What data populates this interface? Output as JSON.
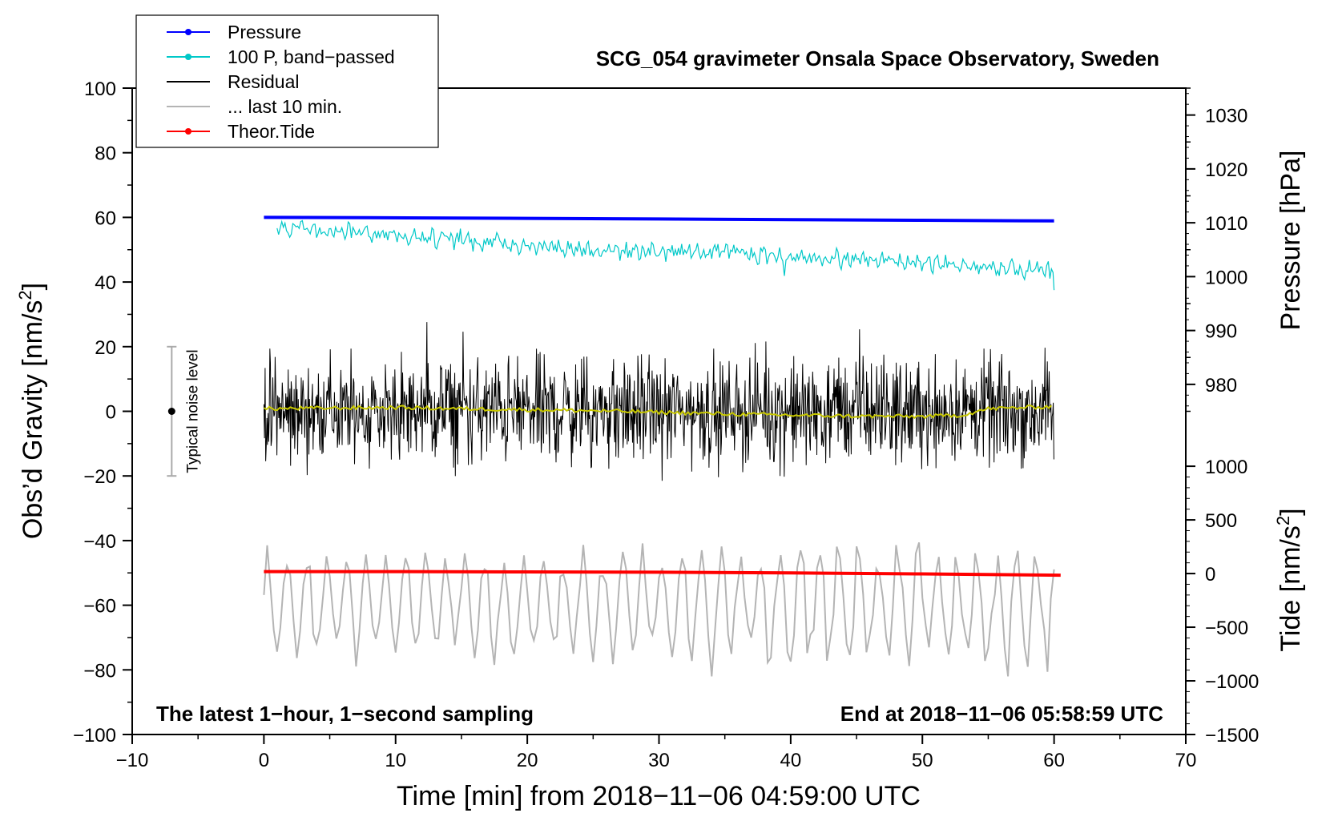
{
  "chart_data": {
    "type": "line",
    "title": "SCG_054 gravimeter Onsala Space Observatory, Sweden",
    "xlabel": "Time [min] from 2018−11−06 04:59:00 UTC",
    "ylabel_left": "Obs’d Gravity [nm/s²]",
    "ylabel_left_main": "Obs’d Gravity [nm/s",
    "ylabel_left_sup": "2",
    "ylabel_left_close": "]",
    "ylabel_right_top": "Pressure [hPa]",
    "ylabel_right_bottom": "Tide [nm/s²]",
    "ylabel_right_bottom_main": "Tide [nm/s",
    "ylabel_right_bottom_sup": "2",
    "ylabel_right_bottom_close": "]",
    "xlim": [
      -10,
      70
    ],
    "ylim": [
      -100,
      100
    ],
    "pressure_axis_range": [
      975,
      1035
    ],
    "tide_axis_range": [
      -1500,
      1000
    ],
    "x_ticks": [
      "−10",
      "0",
      "10",
      "20",
      "30",
      "40",
      "50",
      "60",
      "70"
    ],
    "y_ticks": [
      "100",
      "80",
      "60",
      "40",
      "20",
      "0",
      "−20",
      "−40",
      "−60",
      "−80",
      "−100"
    ],
    "pressure_ticks": [
      "1030",
      "1020",
      "1010",
      "1000",
      "990",
      "980"
    ],
    "tide_ticks": [
      "1000",
      "500",
      "0",
      "−500",
      "−1000",
      "−1500"
    ],
    "bottom_left_note": "The latest 1−hour, 1−second sampling",
    "bottom_right_note": "End at 2018−11−06 05:58:59 UTC",
    "noise_label": "Typical noise level",
    "noise_bar": {
      "x": -7,
      "center": 0,
      "half_range": 20
    },
    "legend": [
      {
        "label": "Pressure",
        "color": "#0000ff",
        "marker": "dot"
      },
      {
        "label": "100 P, band−passed",
        "color": "#00c8c8",
        "marker": "dot"
      },
      {
        "label": "Residual",
        "color": "#000000",
        "marker": "none"
      },
      {
        "label": "... last 10 min.",
        "color": "#b4b4b4",
        "marker": "none"
      },
      {
        "label": "Theor.Tide",
        "color": "#ff0000",
        "marker": "dot"
      }
    ],
    "series": [
      {
        "name": "Pressure",
        "color": "#0000ff",
        "axis": "left",
        "x": [
          0,
          8,
          20,
          30,
          40,
          50,
          60
        ],
        "values": [
          60.0,
          59.9,
          59.7,
          59.5,
          59.3,
          59.1,
          58.9
        ]
      },
      {
        "name": "100 P, band−passed",
        "color": "#00c8c8",
        "axis": "left",
        "x": [
          1,
          5,
          10,
          15,
          20,
          25,
          30,
          35,
          40,
          45,
          50,
          55,
          60
        ],
        "values": [
          57,
          56.5,
          54.5,
          53,
          51.5,
          50,
          49.5,
          49,
          48,
          47,
          46,
          44.5,
          43
        ]
      },
      {
        "name": "Residual",
        "color": "#000000",
        "axis": "left",
        "x_start": 0,
        "x_end": 60,
        "amplitude_range": [
          -25,
          28
        ]
      },
      {
        "name": "Residual smoothed",
        "color": "#c8c800",
        "axis": "left",
        "x": [
          0,
          5,
          10,
          15,
          20,
          25,
          30,
          35,
          40,
          45,
          50,
          53,
          55,
          60
        ],
        "values": [
          0.8,
          1.0,
          1.2,
          0.8,
          0.5,
          0.2,
          -0.3,
          -0.8,
          -1.2,
          -1.5,
          -1.6,
          -1.2,
          0.8,
          1.5
        ]
      },
      {
        "name": "... last 10 min.",
        "color": "#b4b4b4",
        "axis": "left",
        "x_start": 0,
        "x_end": 60,
        "center": -60,
        "range": [
          -82,
          -38
        ]
      },
      {
        "name": "Theor.Tide",
        "color": "#ff0000",
        "axis": "left",
        "x": [
          0,
          10,
          20,
          30,
          40,
          50,
          60.5
        ],
        "values": [
          -49.6,
          -49.6,
          -49.7,
          -49.8,
          -50.0,
          -50.3,
          -50.7
        ]
      }
    ]
  }
}
